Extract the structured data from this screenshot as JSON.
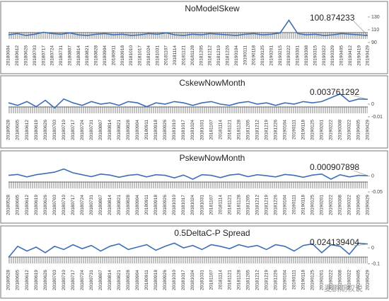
{
  "chart_data": [
    {
      "type": "line",
      "title": "NoModelSkew",
      "annotation": "100.874233",
      "color": "#3d6fb6",
      "categories": [
        "20180604",
        "20180612",
        "20180626",
        "20180703",
        "20180717",
        "20180724",
        "20180731",
        "20180807",
        "20180814",
        "20180821",
        "20180828",
        "20180904",
        "20180911",
        "20180918",
        "20181010",
        "20181017",
        "20181024",
        "20181031",
        "20181107",
        "20181114",
        "20181121",
        "20181128",
        "20181205",
        "20181212",
        "20181219",
        "20181226",
        "20190104",
        "20190111",
        "20190118",
        "20190125",
        "20190201",
        "20190215",
        "20190222",
        "20190301",
        "20190308",
        "20190315",
        "20190322",
        "20190329",
        "20190405",
        "20190412",
        "20190419",
        "20190429"
      ],
      "values": [
        102,
        104,
        101,
        103,
        106,
        104,
        103,
        105,
        102,
        101,
        103,
        104,
        102,
        103,
        101,
        102,
        104,
        103,
        105,
        102,
        101,
        103,
        102,
        104,
        103,
        102,
        101,
        103,
        104,
        102,
        103,
        105,
        125,
        104,
        102,
        103,
        101,
        102,
        104,
        103,
        102,
        100.874233
      ],
      "ylim": [
        90,
        130
      ],
      "yticks": [
        90,
        110,
        130
      ]
    },
    {
      "type": "line",
      "title": "CskewNowMonth",
      "annotation": "0.003761292",
      "color": "#3d6fb6",
      "categories": [
        "20180528",
        "20180605",
        "20180612",
        "20180619",
        "20180626",
        "20180703",
        "20180710",
        "20180717",
        "20180724",
        "20180731",
        "20180807",
        "20180814",
        "20180821",
        "20180828",
        "20180904",
        "20180911",
        "20180918",
        "20180926",
        "20181010",
        "20181017",
        "20181024",
        "20181031",
        "20181107",
        "20181114",
        "20181121",
        "20181128",
        "20181205",
        "20181212",
        "20181219",
        "20181226",
        "20190104",
        "20190111",
        "20190118",
        "20190125",
        "20190201",
        "20190222",
        "20190308",
        "20190322",
        "20190405",
        "20190429"
      ],
      "values": [
        0.001,
        -0.001,
        0.002,
        -0.002,
        0.003,
        -0.003,
        0.004,
        0.001,
        -0.001,
        0.002,
        0,
        0.001,
        -0.001,
        0.002,
        0.001,
        -0.002,
        0.001,
        0,
        0.002,
        0.001,
        -0.001,
        0.001,
        0.002,
        0,
        -0.001,
        0.001,
        0.002,
        0,
        0.001,
        -0.001,
        0.001,
        0,
        0.002,
        0.001,
        0.002,
        0.005,
        0.008,
        0.002,
        0.004,
        0.003761292
      ],
      "ylim": [
        -0.01,
        0.01
      ],
      "yticks": [
        -0.01,
        0
      ]
    },
    {
      "type": "line",
      "title": "PskewNowMonth",
      "annotation": "0.000907898",
      "color": "#3d6fb6",
      "categories": [
        "20180528",
        "20180605",
        "20180612",
        "20180619",
        "20180626",
        "20180703",
        "20180710",
        "20180717",
        "20180724",
        "20180731",
        "20180807",
        "20180814",
        "20180821",
        "20180828",
        "20180904",
        "20180911",
        "20180918",
        "20180926",
        "20181010",
        "20181017",
        "20181024",
        "20181031",
        "20181107",
        "20181114",
        "20181121",
        "20181128",
        "20181205",
        "20181212",
        "20181219",
        "20181226",
        "20190104",
        "20190111",
        "20190118",
        "20190125",
        "20190201",
        "20190222",
        "20190308",
        "20190322",
        "20190405",
        "20190429"
      ],
      "values": [
        0.002,
        0.005,
        -0.003,
        0.004,
        0.008,
        0.012,
        0.022,
        0.01,
        0.004,
        -0.002,
        0.006,
        0.003,
        -0.004,
        0.002,
        0.005,
        -0.003,
        0.004,
        0.002,
        -0.006,
        0.003,
        -0.01,
        0.004,
        0.002,
        -0.005,
        0.003,
        0.006,
        -0.002,
        0.004,
        0.001,
        -0.003,
        0.005,
        0.002,
        -0.004,
        0.003,
        0.006,
        -0.01,
        0.004,
        -0.003,
        0.002,
        0.000907898
      ],
      "ylim": [
        -0.05,
        0.03
      ],
      "yticks": [
        -0.05,
        0
      ]
    },
    {
      "type": "line",
      "title": "0.5DeltaC-P Spread",
      "annotation": "0.024139404",
      "color": "#3d6fb6",
      "categories": [
        "20180528",
        "20180605",
        "20180612",
        "20180619",
        "20180626",
        "20180703",
        "20180710",
        "20180717",
        "20180724",
        "20180731",
        "20180807",
        "20180814",
        "20180821",
        "20180828",
        "20180904",
        "20180911",
        "20180918",
        "20180926",
        "20181010",
        "20181017",
        "20181024",
        "20181031",
        "20181107",
        "20181114",
        "20181121",
        "20181128",
        "20181205",
        "20181212",
        "20181219",
        "20181226",
        "20190104",
        "20190111",
        "20190118",
        "20190125",
        "20190201",
        "20190222",
        "20190308",
        "20190322",
        "20190405",
        "20190429"
      ],
      "values": [
        -0.06,
        0.01,
        -0.02,
        0.005,
        -0.03,
        0.01,
        -0.01,
        0.02,
        -0.005,
        0.015,
        -0.02,
        0.01,
        0.025,
        -0.01,
        0.005,
        0.02,
        -0.015,
        0.01,
        0.03,
        0,
        0.015,
        -0.01,
        0.02,
        0.01,
        -0.005,
        0.02,
        0.005,
        0.015,
        -0.01,
        0.02,
        0.01,
        -0.02,
        0.015,
        0.025,
        -0.03,
        0.02,
        0.01,
        -0.04,
        0.03,
        0.024139404
      ],
      "ylim": [
        -0.12,
        0.04
      ],
      "yticks": [
        -0.1,
        0
      ]
    }
  ],
  "watermark": "麦鹏期权说"
}
